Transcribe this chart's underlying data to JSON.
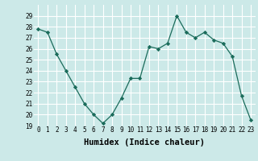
{
  "x": [
    0,
    1,
    2,
    3,
    4,
    5,
    6,
    7,
    8,
    9,
    10,
    11,
    12,
    13,
    14,
    15,
    16,
    17,
    18,
    19,
    20,
    21,
    22,
    23
  ],
  "y": [
    27.8,
    27.5,
    25.5,
    24.0,
    22.5,
    21.0,
    20.0,
    19.2,
    20.0,
    21.5,
    23.3,
    23.3,
    26.2,
    26.0,
    26.5,
    29.0,
    27.5,
    27.0,
    27.5,
    26.8,
    26.5,
    25.3,
    21.7,
    19.5
  ],
  "line_color": "#1a6b5a",
  "marker": "D",
  "marker_size": 2.2,
  "bg_color": "#cce9e8",
  "grid_color": "#ffffff",
  "grid_minor_color": "#ddf5f4",
  "xlabel": "Humidex (Indice chaleur)",
  "ylim": [
    19,
    30
  ],
  "xlim": [
    -0.5,
    23.5
  ],
  "yticks": [
    19,
    20,
    21,
    22,
    23,
    24,
    25,
    26,
    27,
    28,
    29
  ],
  "xticks": [
    0,
    1,
    2,
    3,
    4,
    5,
    6,
    7,
    8,
    9,
    10,
    11,
    12,
    13,
    14,
    15,
    16,
    17,
    18,
    19,
    20,
    21,
    22,
    23
  ],
  "tick_fontsize": 5.5,
  "xlabel_fontsize": 7.5
}
